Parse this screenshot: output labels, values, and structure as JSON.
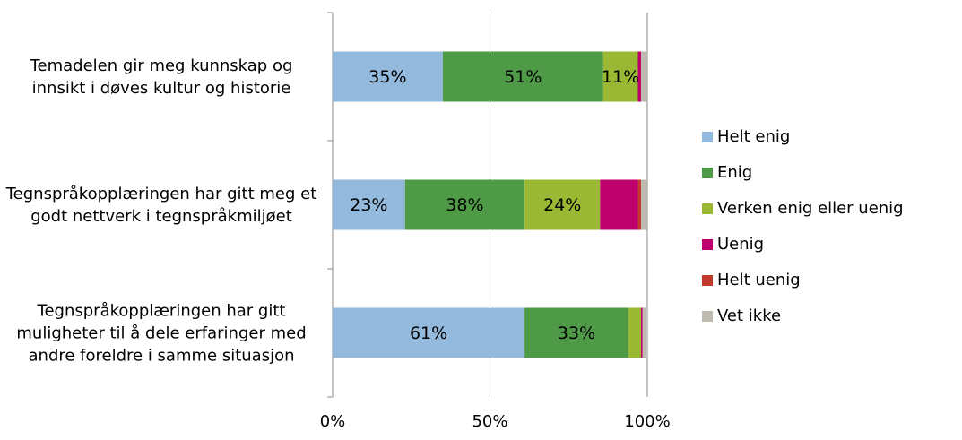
{
  "chart_data": {
    "type": "stacked-bar-horizontal",
    "categories": [
      "Temadelen gir meg kunnskap og innsikt i døves kultur og historie",
      "Tegnspråkopplæringen har gitt meg et godt nettverk i tegnspråkmiljøet",
      "Tegnspråkopplæringen har gitt muligheter til å dele erfaringer med andre foreldre i samme situasjon"
    ],
    "series": [
      {
        "name": "Helt enig",
        "color": "#93b9dc",
        "values": [
          35,
          23,
          61
        ],
        "value_labels": [
          "35%",
          "23%",
          "61%"
        ]
      },
      {
        "name": "Enig",
        "color": "#4f9a47",
        "values": [
          51,
          38,
          33
        ],
        "value_labels": [
          "51%",
          "38%",
          "33%"
        ]
      },
      {
        "name": "Verken enig eller uenig",
        "color": "#9ab833",
        "values": [
          11,
          24,
          4
        ],
        "value_labels": [
          "11%",
          "24%",
          null
        ]
      },
      {
        "name": "Uenig",
        "color": "#bd006c",
        "values": [
          1,
          12,
          0.5
        ],
        "value_labels": [
          null,
          null,
          null
        ]
      },
      {
        "name": "Helt uenig",
        "color": "#c0392b",
        "values": [
          0,
          1,
          0
        ],
        "value_labels": [
          null,
          null,
          null
        ]
      },
      {
        "name": "Vet ikke",
        "color": "#bfbab0",
        "values": [
          2,
          2,
          1
        ],
        "value_labels": [
          null,
          null,
          null
        ]
      }
    ],
    "xlim": [
      0,
      100
    ],
    "xticks": [
      {
        "value": 0,
        "label": "0%"
      },
      {
        "value": 50,
        "label": "50%"
      },
      {
        "value": 100,
        "label": "100%"
      }
    ],
    "grid": true,
    "legend": "right"
  }
}
